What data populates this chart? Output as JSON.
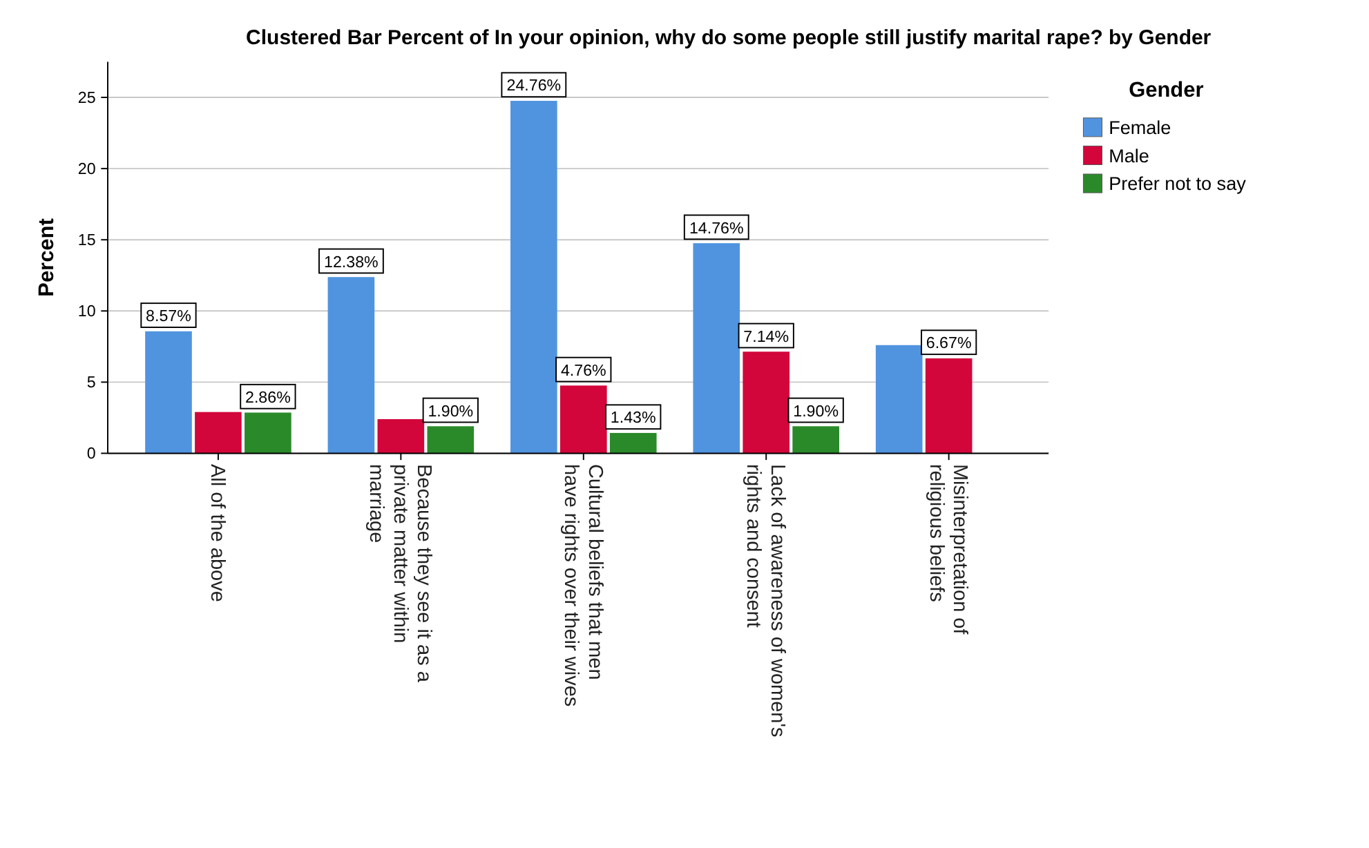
{
  "chart_data": {
    "type": "bar",
    "title": "Clustered Bar Percent of In your opinion, why do some people still justify marital rape? by Gender",
    "ylabel": "Percent",
    "legend_title": "Gender",
    "legend": "right",
    "grid": "y",
    "categories": [
      "All of the above",
      "Because they see it as a private matter within marriage",
      "Cultural beliefs that men have rights over their wives",
      "Lack of awareness of women's rights and consent",
      "Misinterpretation of religious beliefs"
    ],
    "ylim": [
      0,
      27.5
    ],
    "yticks": [
      0,
      5,
      10,
      15,
      20,
      25
    ],
    "series": [
      {
        "name": "Female",
        "color": "#5094e0",
        "values": [
          8.57,
          12.38,
          24.76,
          14.76,
          7.6
        ],
        "value_labels": [
          "8.57%",
          "12.38%",
          "24.76%",
          "14.76%",
          null
        ]
      },
      {
        "name": "Male",
        "color": "#d2063a",
        "values": [
          2.9,
          2.4,
          4.76,
          7.14,
          6.67
        ],
        "value_labels": [
          null,
          null,
          "4.76%",
          "7.14%",
          "6.67%"
        ]
      },
      {
        "name": "Prefer not to say",
        "color": "#2a8a2a",
        "values": [
          2.86,
          1.9,
          1.43,
          1.9,
          null
        ],
        "value_labels": [
          "2.86%",
          "1.90%",
          "1.43%",
          "1.90%",
          null
        ]
      }
    ]
  }
}
